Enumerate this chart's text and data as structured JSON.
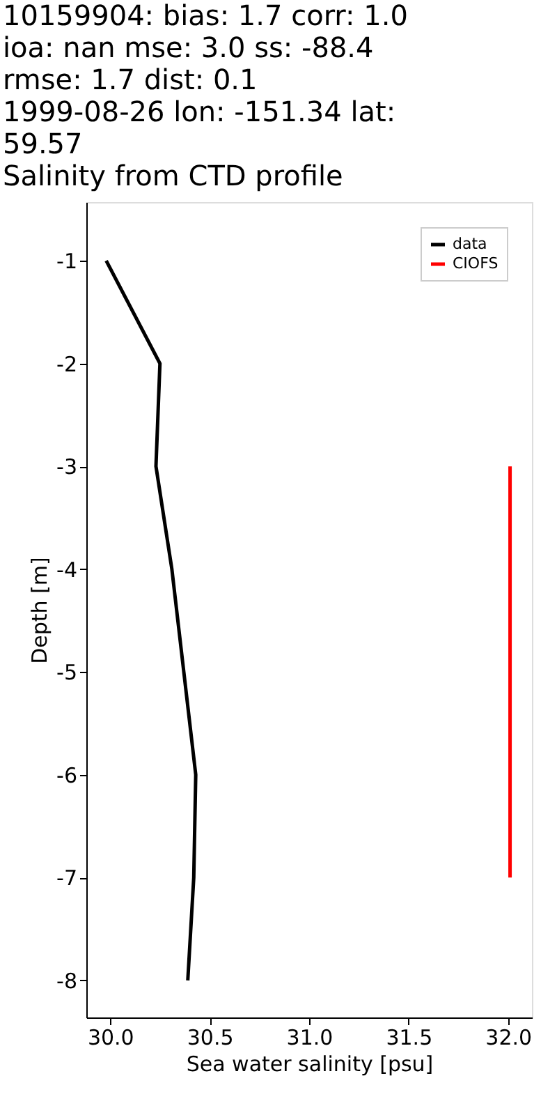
{
  "chart_data": {
    "type": "line",
    "title": "10159904: bias: 1.7  corr: 1.0\n ioa: nan  mse: 3.0  ss: -88.4\nrmse: 1.7  dist: 0.1\n1999-08-26 lon: -151.34 lat:\n59.57\nSalinity from CTD profile",
    "xlabel": "Sea water salinity [psu]",
    "ylabel": "Depth [m]",
    "series": [
      {
        "name": "data",
        "color": "#000000",
        "x": [
          29.98,
          30.25,
          30.23,
          30.31,
          30.37,
          30.43,
          30.42,
          30.39
        ],
        "values": [
          -1,
          -2,
          -3,
          -4,
          -5,
          -6,
          -7,
          -8
        ]
      },
      {
        "name": "CIOFS",
        "color": "#ff0000",
        "x": [
          32.01,
          32.01
        ],
        "values": [
          -3,
          -7
        ]
      }
    ],
    "xlim": [
      29.88,
      32.12
    ],
    "xticks": [
      {
        "value": 30,
        "label": "30.0"
      },
      {
        "value": 30.5,
        "label": "30.5"
      },
      {
        "value": 31,
        "label": "31.0"
      },
      {
        "value": 31.5,
        "label": "31.5"
      },
      {
        "value": 32,
        "label": "32.0"
      }
    ],
    "ylim": [
      -8.36,
      -0.43
    ],
    "yticks": [
      -8,
      -7,
      -6,
      -5,
      -4,
      -3,
      -2,
      -1
    ],
    "grid": false,
    "legend": "top right",
    "line_style": "solid",
    "marker": "none"
  }
}
